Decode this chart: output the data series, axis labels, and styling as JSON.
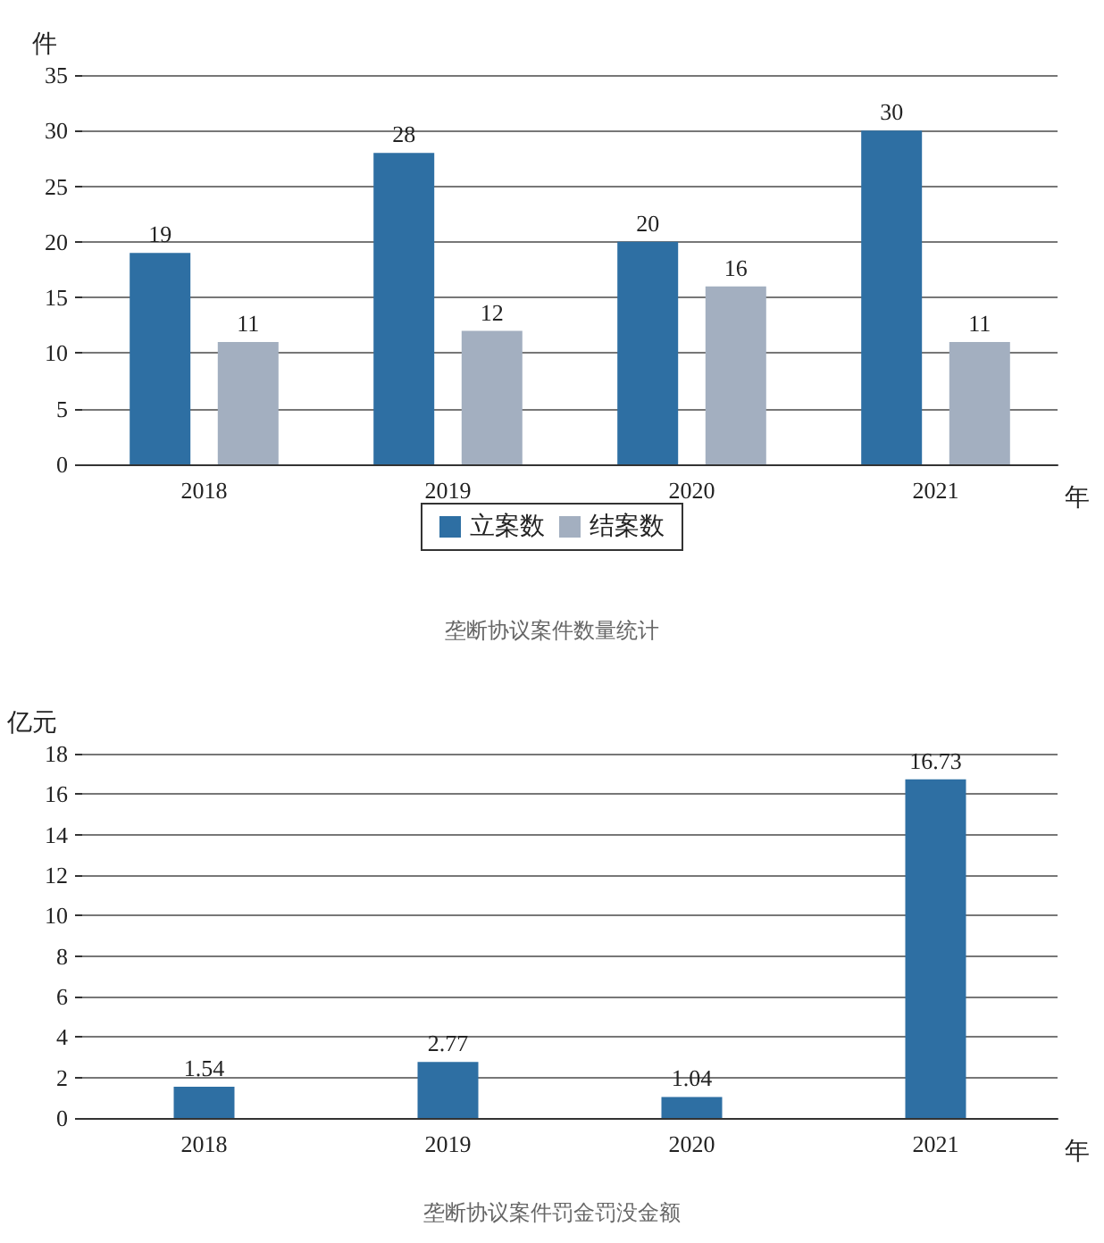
{
  "chart_data": [
    {
      "type": "bar",
      "title": "垄断协议案件数量统计",
      "xlabel": "年",
      "ylabel": "件",
      "categories": [
        "2018",
        "2019",
        "2020",
        "2021"
      ],
      "series": [
        {
          "name": "立案数",
          "color": "#2e6fa3",
          "values": [
            19,
            28,
            20,
            30
          ]
        },
        {
          "name": "结案数",
          "color": "#a3afc0",
          "values": [
            11,
            12,
            16,
            11
          ]
        }
      ],
      "ylim": [
        0,
        35
      ],
      "yticks": [
        0,
        5,
        10,
        15,
        20,
        25,
        30,
        35
      ],
      "grid": "y",
      "legend": "bottom",
      "data_labels": true
    },
    {
      "type": "bar",
      "title": "垄断协议案件罚金罚没金额",
      "xlabel": "年",
      "ylabel": "亿元",
      "categories": [
        "2018",
        "2019",
        "2020",
        "2021"
      ],
      "series": [
        {
          "color": "#2e6fa3",
          "values": [
            1.54,
            2.77,
            1.04,
            16.73
          ]
        }
      ],
      "ylim": [
        0,
        18
      ],
      "yticks": [
        0,
        2,
        4,
        6,
        8,
        10,
        12,
        14,
        16,
        18
      ],
      "grid": "y",
      "data_labels": true
    }
  ]
}
